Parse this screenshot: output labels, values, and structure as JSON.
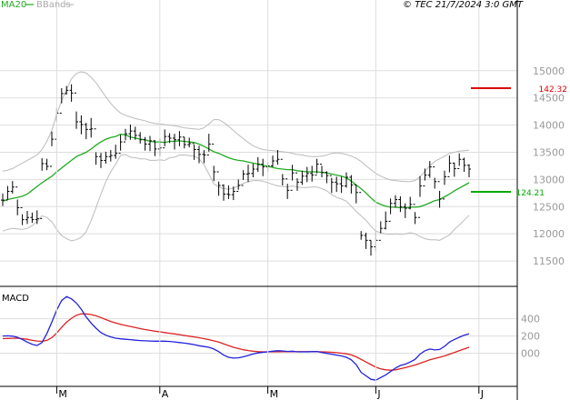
{
  "header": {
    "ma_label": "MA20",
    "bands_label": "BBands",
    "copyright": "© TEC 21/7/2024 3:0 GMT"
  },
  "macd_label": "MACD",
  "price_markers": {
    "upper_value": "142.32",
    "lower_value": "124.21",
    "upper_color": "#dd0000",
    "lower_color": "#00aa00"
  },
  "colors": {
    "ma": "#22aa22",
    "bands": "#bbbbbb",
    "grid": "#dddddd",
    "macd": "#2222dd",
    "signal": "#dd2222",
    "bars": "#000000"
  },
  "chart_data": [
    {
      "type": "ohlc",
      "ylim": [
        112.0,
        160.0
      ],
      "yticks": [
        "11500",
        "12000",
        "12500",
        "13000",
        "13500",
        "14000",
        "14500",
        "15000"
      ],
      "xticks": [
        {
          "label": "M",
          "index": 11
        },
        {
          "label": "A",
          "index": 32
        },
        {
          "label": "M",
          "index": 54
        },
        {
          "label": "J",
          "index": 76
        },
        {
          "label": "J",
          "index": 97
        }
      ],
      "close": [
        126.2,
        127.8,
        128.6,
        124.8,
        122.6,
        123.0,
        122.6,
        122.8,
        132.9,
        132.4,
        137.4,
        142.2,
        145.8,
        146.4,
        145.9,
        140.6,
        140.1,
        139.2,
        139.3,
        134.2,
        133.5,
        134.2,
        134.4,
        134.8,
        136.9,
        138.4,
        138.9,
        138.1,
        137.3,
        136.5,
        137.1,
        135.6,
        135.8,
        137.9,
        137.6,
        137.3,
        137.8,
        136.4,
        136.6,
        135.5,
        134.6,
        134.5,
        136.5,
        131.4,
        128.9,
        127.3,
        127.2,
        127.8,
        128.9,
        131.0,
        131.1,
        131.9,
        132.8,
        132.3,
        132.5,
        133.4,
        133.7,
        130.1,
        128.0,
        131.2,
        129.5,
        130.6,
        131.1,
        130.8,
        132.8,
        131.3,
        130.7,
        129.5,
        129.2,
        128.8,
        130.4,
        129.0,
        127.6,
        119.7,
        118.8,
        117.6,
        118.8,
        121.0,
        122.3,
        125.6,
        126.3,
        125.0,
        124.7,
        125.4,
        123.0,
        128.8,
        130.8,
        132.3,
        129.6,
        126.4,
        130.5,
        133.0,
        132.0,
        133.7,
        132.6,
        131.9
      ],
      "high": [
        127.4,
        128.8,
        129.7,
        126.3,
        123.6,
        124.2,
        123.9,
        124.3,
        133.9,
        133.8,
        138.8,
        143.1,
        146.8,
        147.2,
        147.5,
        142.5,
        141.8,
        140.4,
        141.3,
        135.0,
        134.9,
        135.1,
        135.4,
        136.4,
        138.2,
        139.3,
        140.1,
        139.7,
        138.7,
        137.8,
        138.0,
        137.2,
        137.5,
        139.2,
        138.5,
        138.4,
        138.9,
        137.8,
        137.7,
        136.4,
        136.2,
        135.4,
        138.4,
        132.5,
        129.6,
        129.1,
        128.9,
        128.7,
        130.0,
        131.7,
        132.7,
        132.9,
        134.1,
        133.8,
        133.2,
        134.4,
        135.4,
        131.0,
        129.2,
        132.7,
        130.2,
        131.6,
        132.3,
        132.5,
        133.8,
        132.5,
        131.5,
        130.3,
        130.5,
        130.5,
        131.3,
        130.8,
        128.9,
        120.5,
        120.2,
        118.8,
        120.6,
        122.3,
        124.1,
        126.5,
        127.1,
        126.9,
        125.6,
        126.8,
        124.0,
        130.6,
        132.0,
        133.4,
        130.3,
        127.9,
        131.6,
        134.4,
        133.1,
        134.8,
        134.0,
        132.8
      ],
      "low": [
        125.1,
        126.3,
        127.4,
        123.4,
        121.6,
        121.8,
        122.0,
        121.8,
        131.6,
        131.7,
        136.1,
        140.6,
        144.0,
        145.6,
        144.3,
        139.3,
        138.3,
        137.4,
        137.7,
        132.7,
        132.1,
        132.9,
        133.3,
        133.8,
        135.3,
        137.2,
        137.3,
        137.3,
        136.6,
        135.3,
        135.2,
        134.3,
        134.3,
        136.1,
        136.7,
        135.5,
        136.1,
        135.7,
        135.9,
        133.6,
        133.0,
        133.0,
        135.1,
        129.7,
        127.0,
        126.1,
        126.4,
        126.2,
        128.1,
        129.9,
        129.5,
        130.4,
        131.4,
        130.6,
        131.4,
        132.3,
        132.7,
        128.9,
        126.4,
        129.8,
        127.9,
        129.0,
        129.5,
        129.6,
        131.1,
        130.4,
        129.3,
        127.5,
        127.7,
        127.5,
        128.5,
        127.4,
        125.6,
        118.9,
        117.2,
        116.0,
        116.8,
        120.1,
        120.8,
        123.6,
        124.8,
        124.0,
        122.9,
        124.5,
        121.8,
        126.8,
        129.8,
        130.3,
        128.3,
        124.8,
        129.0,
        131.3,
        130.5,
        132.5,
        131.4,
        130.4
      ],
      "ma20": [
        126.0,
        126.3,
        126.5,
        126.7,
        126.9,
        127.3,
        128.0,
        128.7,
        129.4,
        130.0,
        130.6,
        131.4,
        132.1,
        132.8,
        133.5,
        134.2,
        134.6,
        135.0,
        135.6,
        136.3,
        136.9,
        137.4,
        137.7,
        137.9,
        138.3,
        138.2,
        137.8,
        137.6,
        137.4,
        137.3,
        137.0,
        136.9,
        136.9,
        136.8,
        137.0,
        137.0,
        137.1,
        137.0,
        136.9,
        136.8,
        136.5,
        136.1,
        135.6,
        135.1,
        134.8,
        134.4,
        134.0,
        133.7,
        133.5,
        133.4,
        133.2,
        133.0,
        132.8,
        132.6,
        132.4,
        132.2,
        132.0,
        131.9,
        131.8,
        131.8,
        131.6,
        131.5,
        131.4,
        131.4,
        131.4,
        131.3,
        131.2,
        131.0,
        130.8,
        130.6,
        130.3,
        129.7,
        129.0,
        128.3,
        127.5,
        126.6,
        125.8,
        125.4,
        125.1,
        124.9,
        124.9,
        124.8,
        124.8,
        124.9,
        124.9,
        125.0,
        125.3,
        125.7,
        126.1,
        126.3,
        126.8,
        127.3,
        127.9,
        128.4,
        128.9,
        129.4
      ],
      "upper_band": [
        131.5,
        131.7,
        132.0,
        132.5,
        133.0,
        133.5,
        134.0,
        134.5,
        135.5,
        137.0,
        139.0,
        142.0,
        144.5,
        146.5,
        148.5,
        149.5,
        149.8,
        149.6,
        148.8,
        147.8,
        146.5,
        145.2,
        144.0,
        143.0,
        142.2,
        141.8,
        141.5,
        141.2,
        141.0,
        140.8,
        140.5,
        140.3,
        140.2,
        140.1,
        140.0,
        139.9,
        139.7,
        139.5,
        139.4,
        139.3,
        139.2,
        139.5,
        140.2,
        141.0,
        141.0,
        140.5,
        139.8,
        139.0,
        138.2,
        137.5,
        136.8,
        136.2,
        135.8,
        135.5,
        135.4,
        135.3,
        135.2,
        135.1,
        135.0,
        134.8,
        134.6,
        134.5,
        134.3,
        134.2,
        134.2,
        134.3,
        134.5,
        134.8,
        134.9,
        134.8,
        134.6,
        134.3,
        133.9,
        133.3,
        132.5,
        131.8,
        131.1,
        130.6,
        130.2,
        129.9,
        129.8,
        129.7,
        129.6,
        129.6,
        129.8,
        130.5,
        131.5,
        132.5,
        133.3,
        133.8,
        134.3,
        134.8,
        135.0,
        135.2,
        135.3,
        135.4
      ],
      "lower_band": [
        120.5,
        120.8,
        121.0,
        120.9,
        120.8,
        121.0,
        121.5,
        122.3,
        123.3,
        123.0,
        122.2,
        120.8,
        119.7,
        119.1,
        118.7,
        118.9,
        119.4,
        120.4,
        122.4,
        124.8,
        127.3,
        129.6,
        131.4,
        132.8,
        134.4,
        134.6,
        134.1,
        134.0,
        133.8,
        133.8,
        133.5,
        133.5,
        133.6,
        133.5,
        134.0,
        134.1,
        134.5,
        134.5,
        134.4,
        134.3,
        133.8,
        132.7,
        131.0,
        129.2,
        128.6,
        128.3,
        128.2,
        128.4,
        128.8,
        129.3,
        129.6,
        129.8,
        129.8,
        129.7,
        129.4,
        129.1,
        128.8,
        128.7,
        128.6,
        128.8,
        128.6,
        128.5,
        128.5,
        128.6,
        128.6,
        128.3,
        127.9,
        127.2,
        126.7,
        126.4,
        126.0,
        125.1,
        124.1,
        123.3,
        122.5,
        121.4,
        120.5,
        120.2,
        120.0,
        119.9,
        120.0,
        119.9,
        120.0,
        120.2,
        120.0,
        119.5,
        119.1,
        118.9,
        118.9,
        118.8,
        119.3,
        119.8,
        120.8,
        121.6,
        122.5,
        123.4
      ]
    },
    {
      "type": "line",
      "title": "MACD",
      "ylim": [
        -350,
        700
      ],
      "yticks": [
        "000",
        "200",
        "400"
      ],
      "series": [
        {
          "values": [
            200,
            202,
            198,
            186,
            160,
            130,
            105,
            90,
            125,
            230,
            360,
            500,
            610,
            655,
            630,
            580,
            510,
            420,
            350,
            290,
            240,
            210,
            190,
            175,
            168,
            162,
            158,
            152,
            148,
            145,
            142,
            140,
            140,
            140,
            137,
            132,
            125,
            118,
            110,
            100,
            88,
            78,
            70,
            50,
            20,
            -20,
            -45,
            -55,
            -52,
            -40,
            -25,
            -8,
            5,
            12,
            18,
            25,
            30,
            28,
            22,
            25,
            18,
            18,
            17,
            20,
            22,
            10,
            0,
            -10,
            -20,
            -30,
            -45,
            -75,
            -130,
            -220,
            -260,
            -300,
            -310,
            -280,
            -250,
            -210,
            -170,
            -140,
            -125,
            -100,
            -70,
            -10,
            30,
            50,
            40,
            45,
            80,
            130,
            160,
            185,
            210,
            225
          ]
        },
        {
          "values": [
            170,
            172,
            174,
            175,
            170,
            162,
            150,
            142,
            138,
            150,
            180,
            235,
            300,
            360,
            405,
            440,
            455,
            455,
            448,
            433,
            413,
            390,
            368,
            350,
            335,
            322,
            310,
            298,
            285,
            275,
            265,
            256,
            248,
            240,
            232,
            224,
            216,
            206,
            198,
            190,
            180,
            170,
            158,
            145,
            130,
            110,
            90,
            70,
            55,
            42,
            32,
            25,
            20,
            18,
            17,
            17,
            18,
            19,
            19,
            20,
            20,
            20,
            20,
            20,
            20,
            18,
            16,
            12,
            8,
            2,
            -6,
            -18,
            -40,
            -70,
            -100,
            -130,
            -160,
            -180,
            -190,
            -195,
            -190,
            -178,
            -165,
            -150,
            -135,
            -115,
            -95,
            -75,
            -60,
            -45,
            -30,
            -10,
            10,
            30,
            50,
            70
          ]
        }
      ]
    }
  ]
}
